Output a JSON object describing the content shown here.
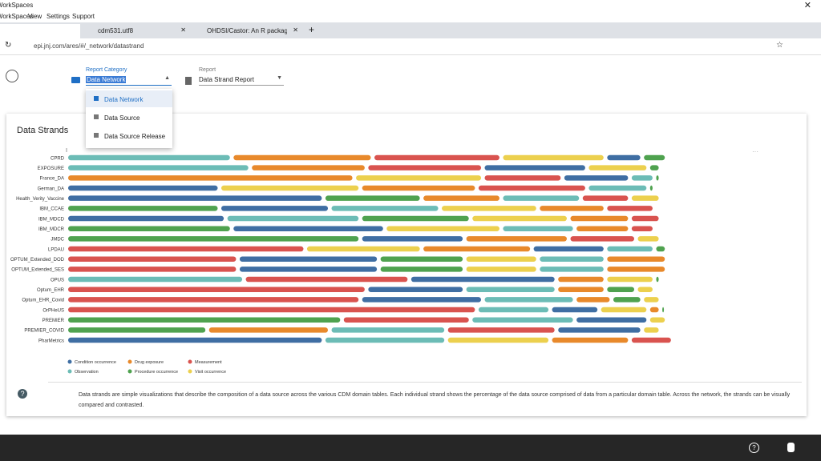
{
  "window": {
    "title": "WorkSpaces",
    "menu": [
      "WorkSpaces",
      "View",
      "Settings",
      "Support"
    ]
  },
  "browser": {
    "tabs": [
      "cdm531.utf8",
      "OHDSI/Castor: An R package for"
    ],
    "url": "epi.jnj.com/ares/#/_network/datastrand"
  },
  "toolbar": {
    "report_category": {
      "label": "Report Category",
      "value": "Data Network",
      "options": [
        "Data Network",
        "Data Source",
        "Data Source Release"
      ]
    },
    "report": {
      "label": "Report",
      "value": "Data Strand Report"
    }
  },
  "card": {
    "title": "Data Strands",
    "description": "Data strands are simple visualizations that describe the composition of a data source across the various CDM domain tables. Each individual strand shows the percentage of the data source comprised of data from a particular domain table. Across the network, the strands can be visually compared and contrasted."
  },
  "chart_data": {
    "type": "strand",
    "categories": [
      "CPRD",
      "EXPOSURE",
      "France_DA",
      "German_DA",
      "Health_Verity_Vaccine",
      "IBM_CCAE",
      "IBM_MDCD",
      "IBM_MDCR",
      "JMDC",
      "LPDAU",
      "OPTUM_Extended_DOD",
      "OPTUM_Extended_SES",
      "OPUS",
      "Optum_EHR",
      "Optum_EHR_Covid",
      "OrPHeUS",
      "PREMIER",
      "PREMIER_COVID",
      "PharMetrics"
    ],
    "series": [
      {
        "name": "Condition occurrence",
        "color": "#3f6ea3",
        "values": [
          6,
          17,
          11,
          25,
          42,
          18,
          26,
          25,
          17,
          12,
          23,
          23,
          24,
          16,
          20,
          8,
          12,
          14,
          42
        ]
      },
      {
        "name": "Drug exposure",
        "color": "#e8892b",
        "values": [
          23,
          19,
          47,
          19,
          13,
          11,
          10,
          9,
          17,
          18,
          10,
          10,
          8,
          8,
          6,
          2,
          null,
          20,
          13
        ]
      },
      {
        "name": "Measurement",
        "color": "#d9534f",
        "values": [
          21,
          19,
          13,
          18,
          8,
          8,
          5,
          4,
          11,
          39,
          28,
          28,
          27,
          49,
          48,
          67,
          21,
          18,
          7
        ]
      },
      {
        "name": "Observation",
        "color": "#6cbcb6",
        "values": [
          27,
          30,
          4,
          10,
          13,
          18,
          22,
          12,
          null,
          8,
          11,
          11,
          29,
          15,
          15,
          12,
          17,
          19,
          20
        ]
      },
      {
        "name": "Procedure occurrence",
        "color": "#4fa24f",
        "values": [
          4,
          2,
          1,
          1,
          16,
          25,
          18,
          27,
          48,
          2,
          14,
          14,
          1,
          5,
          5,
          0.5,
          45,
          23,
          null
        ]
      },
      {
        "name": "Visit occurrence",
        "color": "#ecd04e",
        "values": [
          17,
          10,
          21,
          23,
          5,
          16,
          16,
          19,
          4,
          19,
          12,
          12,
          8,
          3,
          3,
          8,
          3,
          3,
          17
        ]
      }
    ]
  }
}
